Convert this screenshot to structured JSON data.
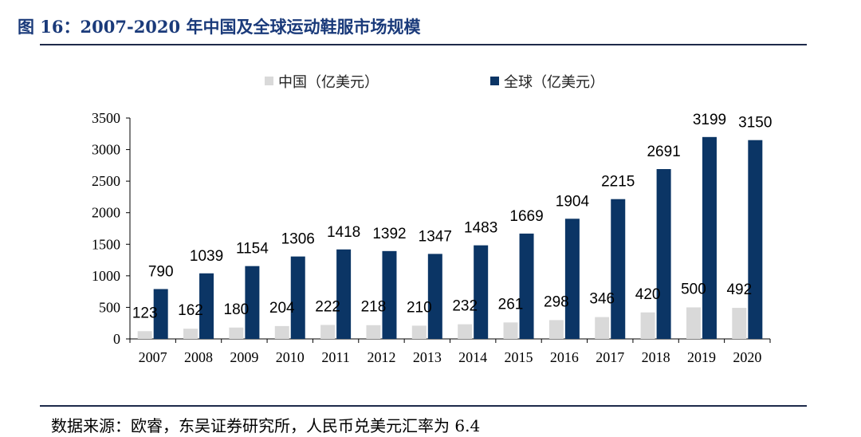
{
  "figure": {
    "title": "图 16：2007-2020 年中国及全球运动鞋服市场规模",
    "source": "数据来源：欧睿，东吴证券研究所，人民币兑美元汇率为 6.4"
  },
  "chart_data": {
    "type": "bar",
    "title": "",
    "xlabel": "",
    "ylabel": "",
    "categories": [
      "2007",
      "2008",
      "2009",
      "2010",
      "2011",
      "2012",
      "2013",
      "2014",
      "2015",
      "2016",
      "2017",
      "2018",
      "2019",
      "2020"
    ],
    "series": [
      {
        "name": "中国（亿美元）",
        "color": "#d9d9d9",
        "values": [
          123,
          162,
          180,
          204,
          222,
          218,
          210,
          232,
          261,
          298,
          346,
          420,
          500,
          492
        ]
      },
      {
        "name": "全球（亿美元）",
        "color": "#0b3565",
        "values": [
          790,
          1039,
          1154,
          1306,
          1418,
          1392,
          1347,
          1483,
          1669,
          1904,
          2215,
          2691,
          3199,
          3150
        ]
      }
    ],
    "ylim": [
      0,
      3500
    ],
    "yticks": [
      0,
      500,
      1000,
      1500,
      2000,
      2500,
      3000,
      3500
    ],
    "grid": false,
    "legend_position": "top-center",
    "data_labels": true
  }
}
